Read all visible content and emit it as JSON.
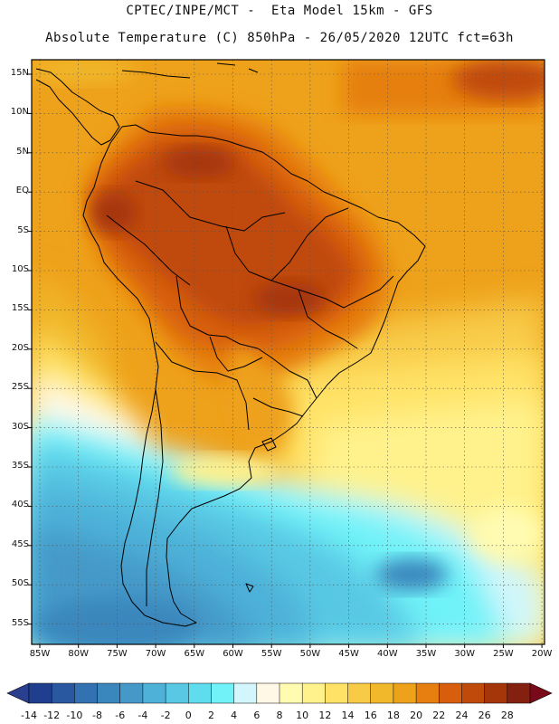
{
  "header": {
    "line1": "CPTEC/INPE/MCT -  Eta Model 15km - GFS",
    "line2": "Absolute Temperature (C) 850hPa - 26/05/2020 12UTC fct=63h"
  },
  "map": {
    "lat_labels": [
      "15N",
      "10N",
      "5N",
      "EQ",
      "5S",
      "10S",
      "15S",
      "20S",
      "25S",
      "30S",
      "35S",
      "40S",
      "45S",
      "50S",
      "55S"
    ],
    "lon_labels": [
      "85W",
      "80W",
      "75W",
      "70W",
      "65W",
      "60W",
      "55W",
      "50W",
      "45W",
      "40W",
      "35W",
      "30W",
      "25W",
      "20W"
    ]
  },
  "colorbar": {
    "ticks": [
      "-14",
      "-12",
      "-10",
      "-8",
      "-6",
      "-4",
      "-2",
      "0",
      "2",
      "4",
      "6",
      "8",
      "10",
      "12",
      "14",
      "16",
      "18",
      "20",
      "22",
      "24",
      "26",
      "28"
    ],
    "colors": [
      "#1f3f8e",
      "#2a58a0",
      "#3272b2",
      "#3a87bd",
      "#4599c8",
      "#4eb1d8",
      "#58c8e4",
      "#60dcef",
      "#70f2f8",
      "#d2f6fb",
      "#fff8e6",
      "#fffbb0",
      "#fff28c",
      "#ffe266",
      "#f8ca46",
      "#f1b82b",
      "#eea11a",
      "#e67f10",
      "#d75e0c",
      "#c04a0a",
      "#a5360a",
      "#842010"
    ],
    "low_color": "#2a3f8e",
    "high_color": "#7a0a1a"
  }
}
